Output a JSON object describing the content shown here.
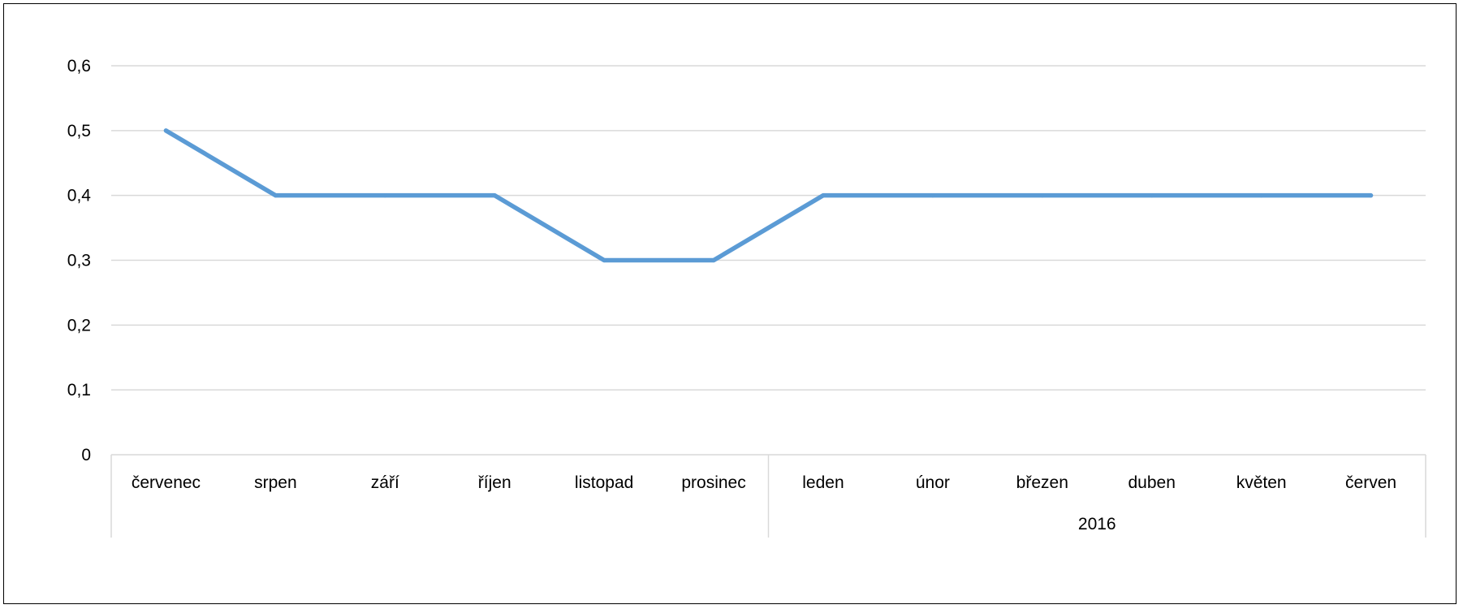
{
  "chart_data": {
    "type": "line",
    "categories": [
      "červenec",
      "srpen",
      "září",
      "říjen",
      "listopad",
      "prosinec",
      "leden",
      "únor",
      "březen",
      "duben",
      "květen",
      "červen"
    ],
    "group_labels": [
      "",
      "2016"
    ],
    "series": [
      {
        "values": [
          0.5,
          0.4,
          0.4,
          0.4,
          0.3,
          0.3,
          0.4,
          0.4,
          0.4,
          0.4,
          0.4,
          0.4
        ]
      }
    ],
    "y_ticks": [
      "0",
      "0,1",
      "0,2",
      "0,3",
      "0,4",
      "0,5",
      "0,6"
    ],
    "ylim": [
      0,
      0.6
    ],
    "grid": true,
    "legend": "none",
    "colors": {
      "line": "#5b9bd5",
      "grid": "#d9d9d9",
      "axis": "#d9d9d9"
    }
  }
}
